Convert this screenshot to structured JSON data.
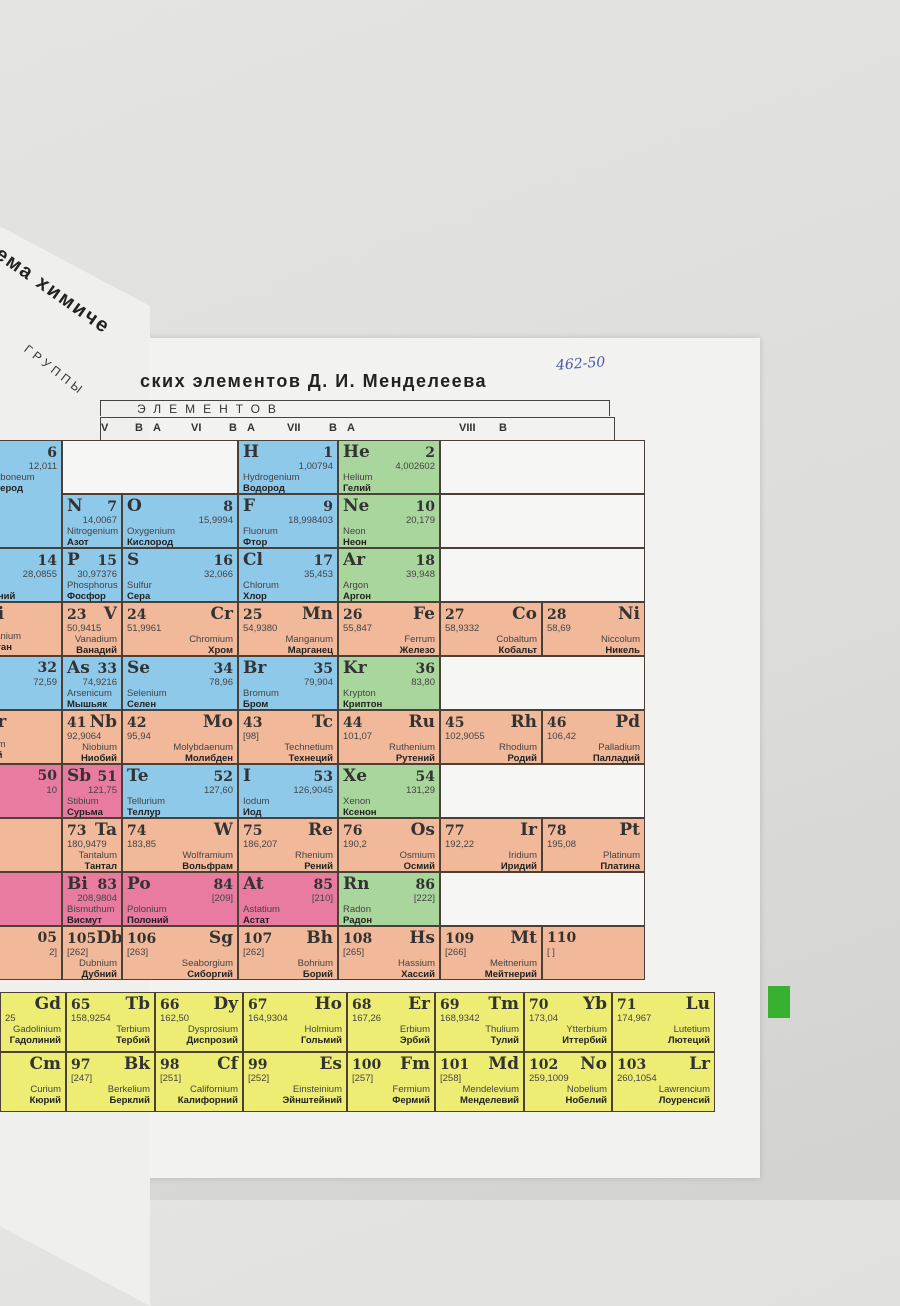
{
  "header": {
    "title_left": "тема химиче",
    "title": "ских элементов Д. И. Менделеева",
    "groups_label": "ГРУППЫ",
    "elements_label": "ЭЛЕМЕНТОВ",
    "handwritten_note": "462-50",
    "group_labels": [
      "V",
      "B",
      "A",
      "VI",
      "B",
      "A",
      "VII",
      "B",
      "A",
      "VIII",
      "B"
    ]
  },
  "colors": {
    "p_block": "#8fc9ea",
    "noble": "#a9d69c",
    "d_block": "#f1b999",
    "metalloid_pink": "#e97aa0",
    "f_block": "#eded74",
    "page": "#f2f2f0"
  },
  "left_fragments": [
    {
      "symbol": "C",
      "number": "6",
      "mass": "12,011",
      "latin": "Carboneum",
      "russian": "Углерод",
      "color": "p_block"
    },
    {
      "symbol": "i",
      "number": "14",
      "mass": "28,0855",
      "latin": "ium",
      "russian": "миний",
      "color": "p_block"
    },
    {
      "symbol": "Ti",
      "number": "",
      "mass": "",
      "latin": "Titanium",
      "russian": "Титан",
      "color": "d_block"
    },
    {
      "symbol": "",
      "number": "32",
      "mass": "72,59",
      "latin": "",
      "russian": "",
      "color": "p_block"
    },
    {
      "symbol": "Zr",
      "number": "",
      "mass": "",
      "latin": "nium",
      "russian": "ний",
      "color": "d_block"
    },
    {
      "symbol": "",
      "number": "50",
      "mass": "10",
      "latin": "",
      "russian": "",
      "color": "metalloid_pink"
    },
    {
      "symbol": "",
      "number": "",
      "mass": "",
      "latin": "",
      "russian": "",
      "color": "d_block"
    },
    {
      "symbol": "",
      "number": "",
      "mass": "",
      "latin": "",
      "russian": "",
      "color": "metalloid_pink"
    },
    {
      "symbol": "",
      "number": "05",
      "mass": "2]",
      "latin": "",
      "russian": "",
      "color": "d_block"
    }
  ],
  "rows": [
    [
      null,
      null,
      null,
      {
        "symbol": "H",
        "number": "1",
        "mass": "1,00794",
        "latin": "Hydrogenium",
        "russian": "Водород",
        "color": "p_block",
        "subgroup": "A"
      },
      {
        "symbol": "He",
        "number": "2",
        "mass": "4,002602",
        "latin": "Helium",
        "russian": "Гелий",
        "color": "noble",
        "subgroup": "A"
      },
      null,
      null
    ],
    [
      null,
      {
        "symbol": "N",
        "number": "7",
        "mass": "14,0067",
        "latin": "Nitrogenium",
        "russian": "Азот",
        "color": "p_block",
        "subgroup": "A"
      },
      {
        "symbol": "O",
        "number": "8",
        "mass": "15,9994",
        "latin": "Oxygenium",
        "russian": "Кислород",
        "color": "p_block",
        "subgroup": "A"
      },
      {
        "symbol": "F",
        "number": "9",
        "mass": "18,998403",
        "latin": "Fluorum",
        "russian": "Фтор",
        "color": "p_block",
        "subgroup": "A"
      },
      {
        "symbol": "Ne",
        "number": "10",
        "mass": "20,179",
        "latin": "Neon",
        "russian": "Неон",
        "color": "noble",
        "subgroup": "A"
      },
      null,
      null
    ],
    [
      null,
      {
        "symbol": "P",
        "number": "15",
        "mass": "30,97376",
        "latin": "Phosphorus",
        "russian": "Фосфор",
        "color": "p_block",
        "subgroup": "A"
      },
      {
        "symbol": "S",
        "number": "16",
        "mass": "32,066",
        "latin": "Sulfur",
        "russian": "Сера",
        "color": "p_block",
        "subgroup": "A"
      },
      {
        "symbol": "Cl",
        "number": "17",
        "mass": "35,453",
        "latin": "Chlorum",
        "russian": "Хлор",
        "color": "p_block",
        "subgroup": "A"
      },
      {
        "symbol": "Ar",
        "number": "18",
        "mass": "39,948",
        "latin": "Argon",
        "russian": "Аргон",
        "color": "noble",
        "subgroup": "A"
      },
      null,
      null
    ],
    [
      null,
      {
        "symbol": "V",
        "number": "23",
        "mass": "50,9415",
        "latin": "Vanadium",
        "russian": "Ванадий",
        "color": "d_block",
        "subgroup": "B"
      },
      {
        "symbol": "Cr",
        "number": "24",
        "mass": "51,9961",
        "latin": "Chromium",
        "russian": "Хром",
        "color": "d_block",
        "subgroup": "B"
      },
      {
        "symbol": "Mn",
        "number": "25",
        "mass": "54,9380",
        "latin": "Manganum",
        "russian": "Марганец",
        "color": "d_block",
        "subgroup": "B"
      },
      {
        "symbol": "Fe",
        "number": "26",
        "mass": "55,847",
        "latin": "Ferrum",
        "russian": "Железо",
        "color": "d_block",
        "subgroup": "B"
      },
      {
        "symbol": "Co",
        "number": "27",
        "mass": "58,9332",
        "latin": "Cobaltum",
        "russian": "Кобальт",
        "color": "d_block",
        "subgroup": "B"
      },
      {
        "symbol": "Ni",
        "number": "28",
        "mass": "58,69",
        "latin": "Niccolum",
        "russian": "Никель",
        "color": "d_block",
        "subgroup": "B"
      }
    ],
    [
      null,
      {
        "symbol": "As",
        "number": "33",
        "mass": "74,9216",
        "latin": "Arsenicum",
        "russian": "Мышьяк",
        "color": "p_block",
        "subgroup": "A"
      },
      {
        "symbol": "Se",
        "number": "34",
        "mass": "78,96",
        "latin": "Selenium",
        "russian": "Селен",
        "color": "p_block",
        "subgroup": "A"
      },
      {
        "symbol": "Br",
        "number": "35",
        "mass": "79,904",
        "latin": "Bromum",
        "russian": "Бром",
        "color": "p_block",
        "subgroup": "A"
      },
      {
        "symbol": "Kr",
        "number": "36",
        "mass": "83,80",
        "latin": "Krypton",
        "russian": "Криптон",
        "color": "noble",
        "subgroup": "A"
      },
      null,
      null
    ],
    [
      null,
      {
        "symbol": "Nb",
        "number": "41",
        "mass": "92,9064",
        "latin": "Niobium",
        "russian": "Ниобий",
        "color": "d_block",
        "subgroup": "B"
      },
      {
        "symbol": "Mo",
        "number": "42",
        "mass": "95,94",
        "latin": "Molybdaenum",
        "russian": "Молибден",
        "color": "d_block",
        "subgroup": "B"
      },
      {
        "symbol": "Tc",
        "number": "43",
        "mass": "[98]",
        "latin": "Technetium",
        "russian": "Технеций",
        "color": "d_block",
        "subgroup": "B"
      },
      {
        "symbol": "Ru",
        "number": "44",
        "mass": "101,07",
        "latin": "Ruthenium",
        "russian": "Рутений",
        "color": "d_block",
        "subgroup": "B"
      },
      {
        "symbol": "Rh",
        "number": "45",
        "mass": "102,9055",
        "latin": "Rhodium",
        "russian": "Родий",
        "color": "d_block",
        "subgroup": "B"
      },
      {
        "symbol": "Pd",
        "number": "46",
        "mass": "106,42",
        "latin": "Palladium",
        "russian": "Палладий",
        "color": "d_block",
        "subgroup": "B"
      }
    ],
    [
      null,
      {
        "symbol": "Sb",
        "number": "51",
        "mass": "121,75",
        "latin": "Stibium",
        "russian": "Сурьма",
        "color": "metalloid_pink",
        "subgroup": "A"
      },
      {
        "symbol": "Te",
        "number": "52",
        "mass": "127,60",
        "latin": "Tellurium",
        "russian": "Теллур",
        "color": "p_block",
        "subgroup": "A"
      },
      {
        "symbol": "I",
        "number": "53",
        "mass": "126,9045",
        "latin": "Iodum",
        "russian": "Иод",
        "color": "p_block",
        "subgroup": "A"
      },
      {
        "symbol": "Xe",
        "number": "54",
        "mass": "131,29",
        "latin": "Xenon",
        "russian": "Ксенон",
        "color": "noble",
        "subgroup": "A"
      },
      null,
      null
    ],
    [
      null,
      {
        "symbol": "Ta",
        "number": "73",
        "mass": "180,9479",
        "latin": "Tantalum",
        "russian": "Тантал",
        "color": "d_block",
        "subgroup": "B"
      },
      {
        "symbol": "W",
        "number": "74",
        "mass": "183,85",
        "latin": "Wolframium",
        "russian": "Вольфрам",
        "color": "d_block",
        "subgroup": "B"
      },
      {
        "symbol": "Re",
        "number": "75",
        "mass": "186,207",
        "latin": "Rhenium",
        "russian": "Рений",
        "color": "d_block",
        "subgroup": "B"
      },
      {
        "symbol": "Os",
        "number": "76",
        "mass": "190,2",
        "latin": "Osmium",
        "russian": "Осмий",
        "color": "d_block",
        "subgroup": "B"
      },
      {
        "symbol": "Ir",
        "number": "77",
        "mass": "192,22",
        "latin": "Iridium",
        "russian": "Иридий",
        "color": "d_block",
        "subgroup": "B"
      },
      {
        "symbol": "Pt",
        "number": "78",
        "mass": "195,08",
        "latin": "Platinum",
        "russian": "Платина",
        "color": "d_block",
        "subgroup": "B"
      }
    ],
    [
      null,
      {
        "symbol": "Bi",
        "number": "83",
        "mass": "208,9804",
        "latin": "Bismuthum",
        "russian": "Висмут",
        "color": "metalloid_pink",
        "subgroup": "A"
      },
      {
        "symbol": "Po",
        "number": "84",
        "mass": "[209]",
        "latin": "Polonium",
        "russian": "Полоний",
        "color": "metalloid_pink",
        "subgroup": "A"
      },
      {
        "symbol": "At",
        "number": "85",
        "mass": "[210]",
        "latin": "Astatium",
        "russian": "Астат",
        "color": "metalloid_pink",
        "subgroup": "A"
      },
      {
        "symbol": "Rn",
        "number": "86",
        "mass": "[222]",
        "latin": "Radon",
        "russian": "Радон",
        "color": "noble",
        "subgroup": "A"
      },
      null,
      null
    ],
    [
      null,
      {
        "symbol": "Db",
        "number": "105",
        "mass": "[262]",
        "latin": "Dubnium",
        "russian": "Дубний",
        "color": "d_block",
        "subgroup": "B"
      },
      {
        "symbol": "Sg",
        "number": "106",
        "mass": "[263]",
        "latin": "Seaborgium",
        "russian": "Сиборгий",
        "color": "d_block",
        "subgroup": "B"
      },
      {
        "symbol": "Bh",
        "number": "107",
        "mass": "[262]",
        "latin": "Bohrium",
        "russian": "Борий",
        "color": "d_block",
        "subgroup": "B"
      },
      {
        "symbol": "Hs",
        "number": "108",
        "mass": "[265]",
        "latin": "Hassium",
        "russian": "Хассий",
        "color": "d_block",
        "subgroup": "B"
      },
      {
        "symbol": "Mt",
        "number": "109",
        "mass": "[266]",
        "latin": "Meitnerium",
        "russian": "Мейтнерий",
        "color": "d_block",
        "subgroup": "B"
      },
      {
        "symbol": "",
        "number": "110",
        "mass": "[ ]",
        "latin": "",
        "russian": "",
        "color": "d_block",
        "subgroup": "B"
      }
    ]
  ],
  "lanthanides": [
    {
      "symbol": "Gd",
      "number": "",
      "mass": "25",
      "latin": "Gadolinium",
      "russian": "Гадолиний"
    },
    {
      "symbol": "Tb",
      "number": "65",
      "mass": "158,9254",
      "latin": "Terbium",
      "russian": "Тербий"
    },
    {
      "symbol": "Dy",
      "number": "66",
      "mass": "162,50",
      "latin": "Dysprosium",
      "russian": "Диспрозий"
    },
    {
      "symbol": "Ho",
      "number": "67",
      "mass": "164,9304",
      "latin": "Holmium",
      "russian": "Гольмий"
    },
    {
      "symbol": "Er",
      "number": "68",
      "mass": "167,26",
      "latin": "Erbium",
      "russian": "Эрбий"
    },
    {
      "symbol": "Tm",
      "number": "69",
      "mass": "168,9342",
      "latin": "Thulium",
      "russian": "Тулий"
    },
    {
      "symbol": "Yb",
      "number": "70",
      "mass": "173,04",
      "latin": "Ytterbium",
      "russian": "Иттербий"
    },
    {
      "symbol": "Lu",
      "number": "71",
      "mass": "174,967",
      "latin": "Lutetium",
      "russian": "Лютеций"
    }
  ],
  "actinides": [
    {
      "symbol": "Cm",
      "number": "",
      "mass": "",
      "latin": "Curium",
      "russian": "Кюрий"
    },
    {
      "symbol": "Bk",
      "number": "97",
      "mass": "[247]",
      "latin": "Berkelium",
      "russian": "Берклий"
    },
    {
      "symbol": "Cf",
      "number": "98",
      "mass": "[251]",
      "latin": "Californium",
      "russian": "Калифорний"
    },
    {
      "symbol": "Es",
      "number": "99",
      "mass": "[252]",
      "latin": "Einsteinium",
      "russian": "Эйнштейний"
    },
    {
      "symbol": "Fm",
      "number": "100",
      "mass": "[257]",
      "latin": "Fermium",
      "russian": "Фермий"
    },
    {
      "symbol": "Md",
      "number": "101",
      "mass": "[258]",
      "latin": "Mendelevium",
      "russian": "Менделевий"
    },
    {
      "symbol": "No",
      "number": "102",
      "mass": "259,1009",
      "latin": "Nobelium",
      "russian": "Нобелий"
    },
    {
      "symbol": "Lr",
      "number": "103",
      "mass": "260,1054",
      "latin": "Lawrencium",
      "russian": "Лоуренсий"
    }
  ]
}
